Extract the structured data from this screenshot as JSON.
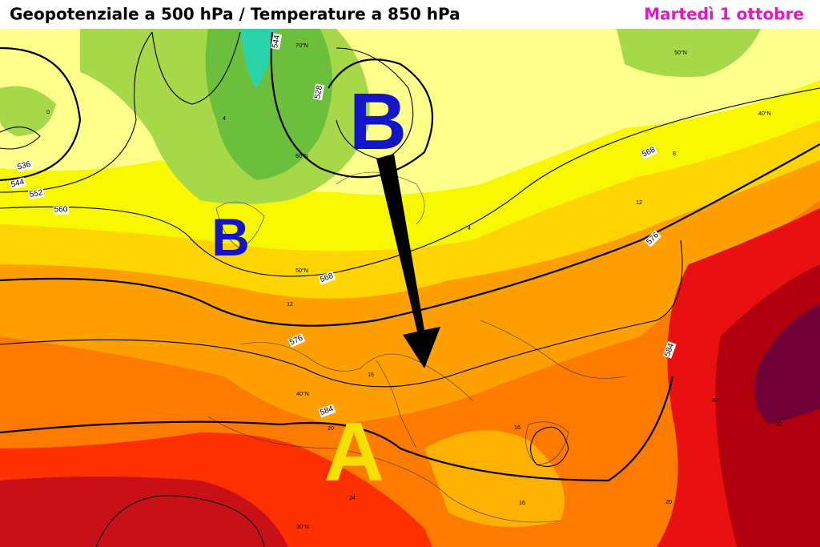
{
  "header": {
    "title": "Geopotenziale a 500 hPa / Temperature a 850 hPa",
    "date": "Martedì 1 ottobre"
  },
  "pressure_centers": [
    {
      "label": "B"
    },
    {
      "label": "B"
    },
    {
      "label": "A"
    }
  ],
  "contour_labels": [
    544,
    528,
    536,
    544,
    552,
    560,
    568,
    568,
    576,
    576,
    584,
    584
  ],
  "isotherm_labels": [
    0,
    4,
    8,
    12,
    16,
    20,
    24,
    16,
    16,
    20,
    20,
    20,
    12,
    4
  ],
  "latitude_labels": [
    "70°N",
    "50°N",
    "40°N",
    "60°N",
    "50°N",
    "40°N",
    "30°N"
  ]
}
